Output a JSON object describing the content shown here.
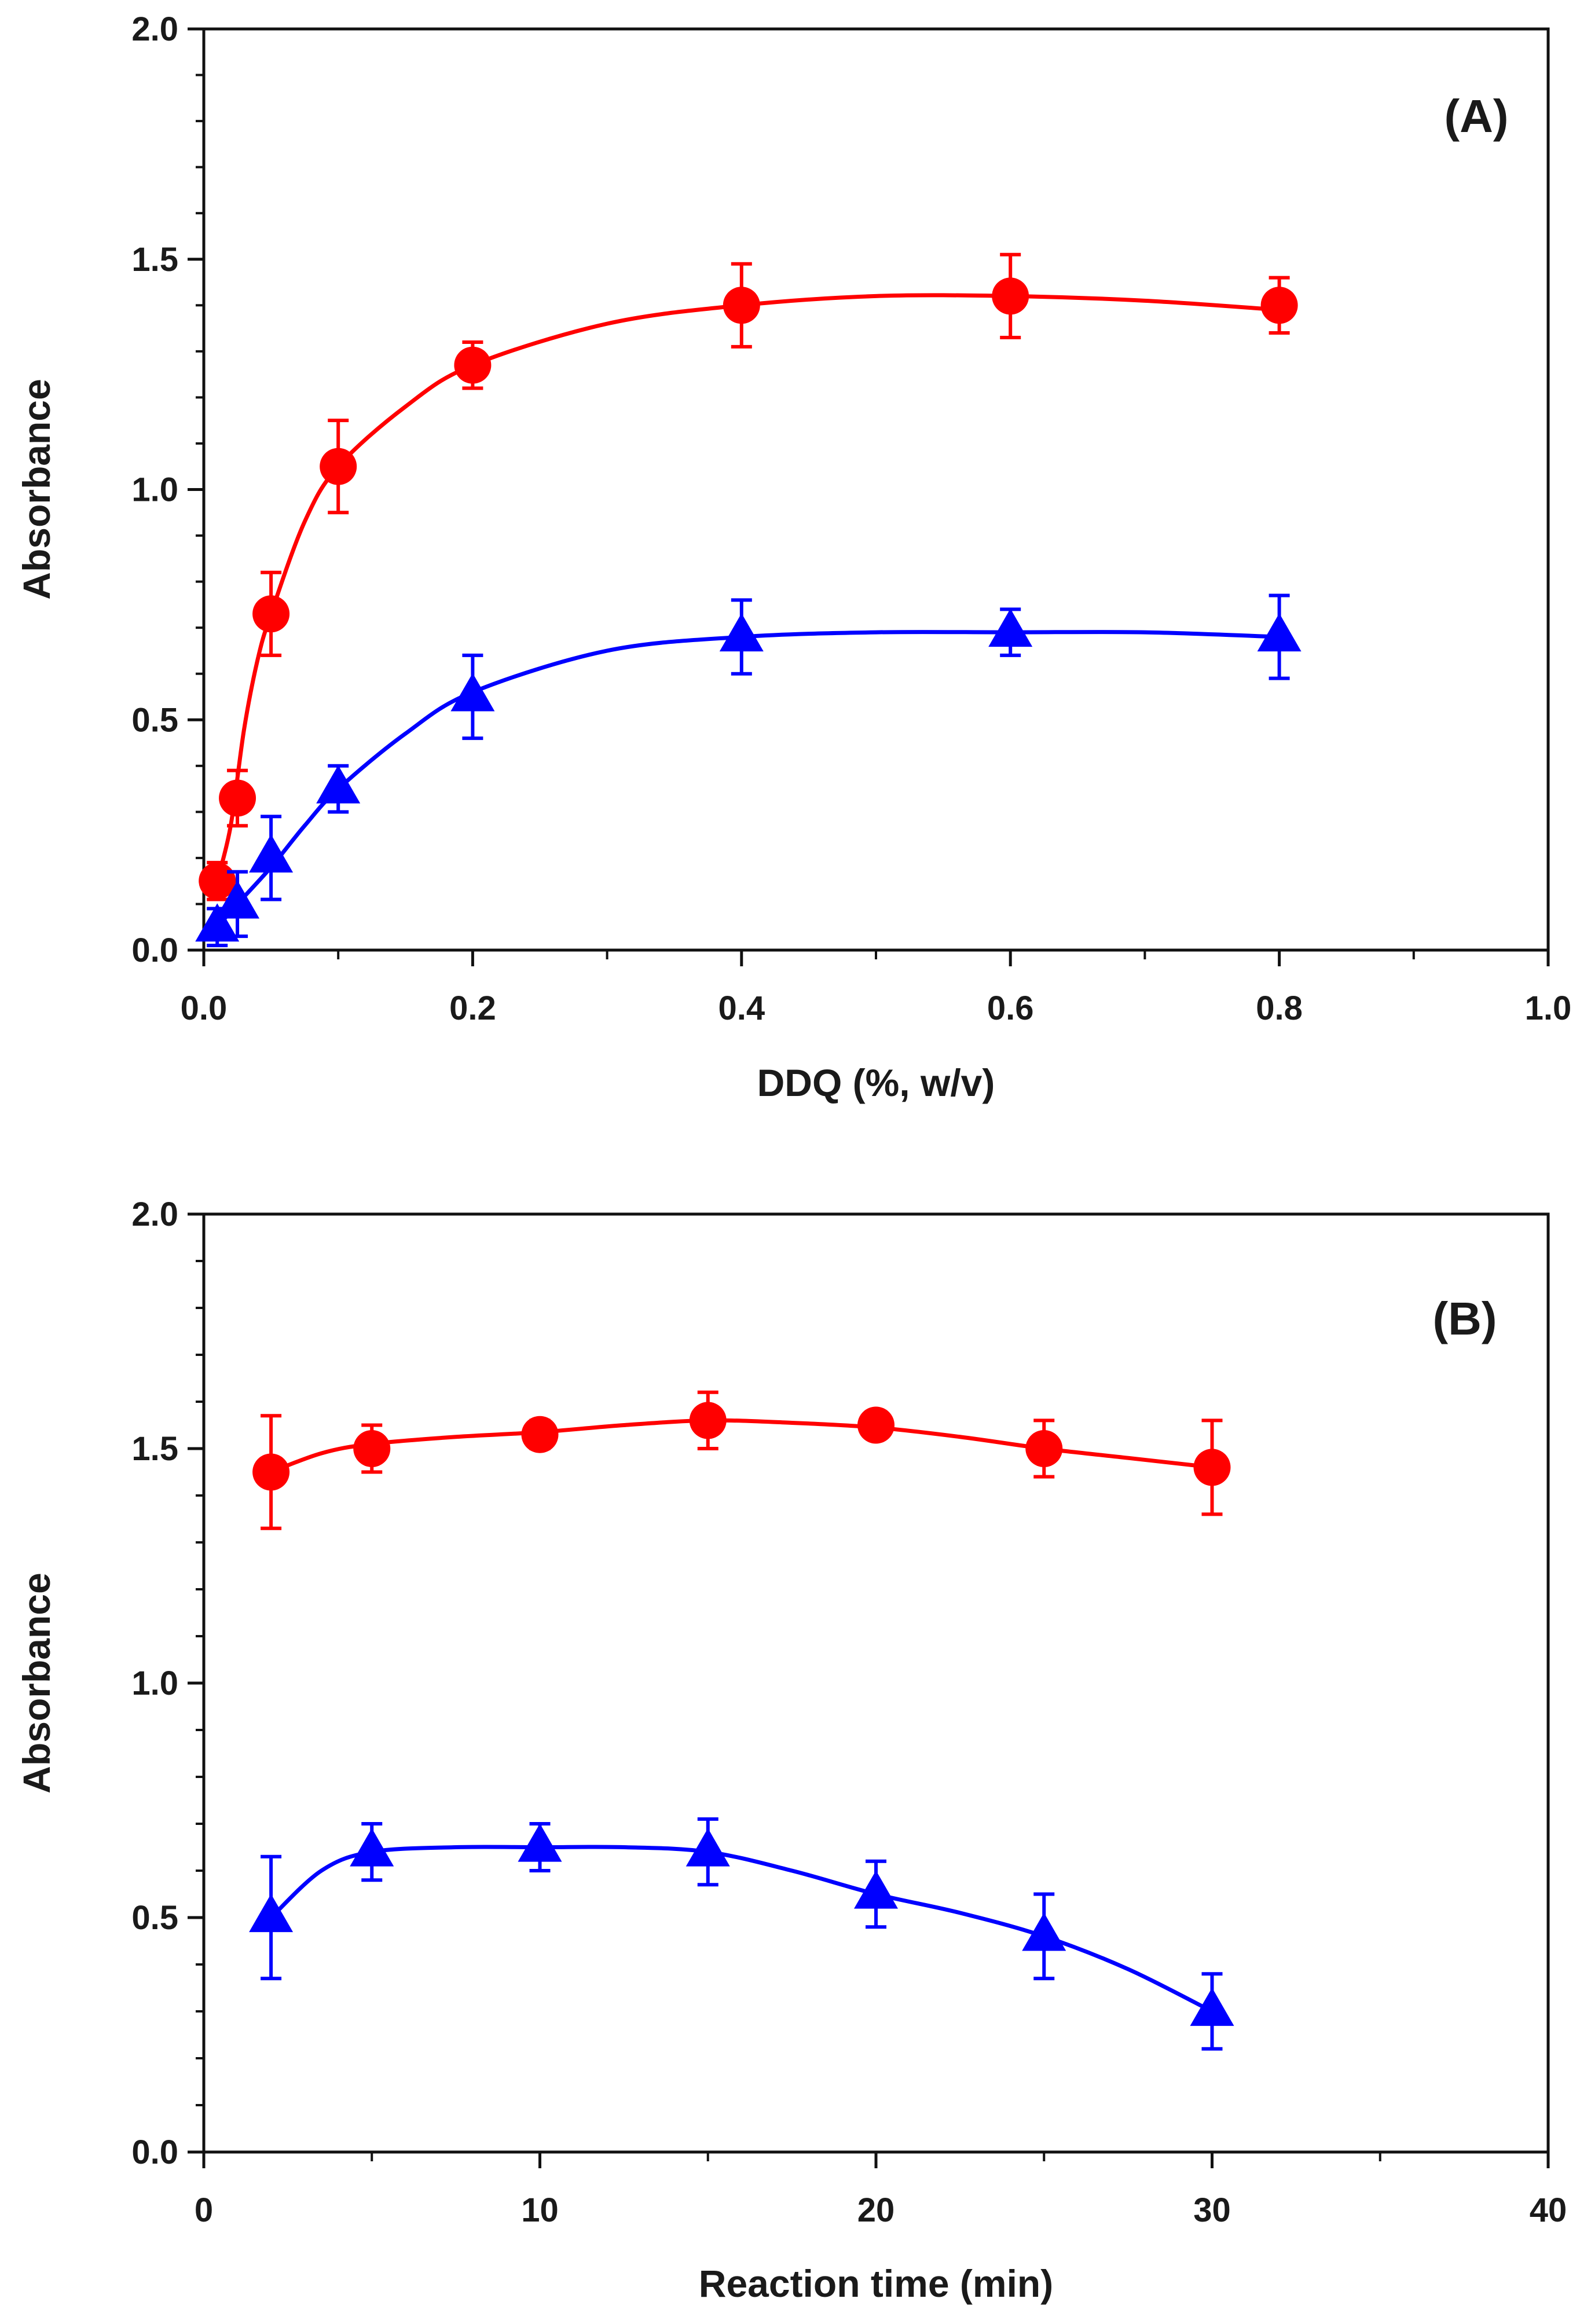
{
  "chart_data": [
    {
      "type": "scatter",
      "panel_label": "(A)",
      "xlabel": "DDQ  (%, w/v)",
      "ylabel": "Absorbance",
      "xlim": [
        0,
        1.0
      ],
      "ylim": [
        0,
        2.0
      ],
      "x_ticks": [
        "0.0",
        "0.2",
        "0.4",
        "0.6",
        "0.8",
        "1.0"
      ],
      "y_ticks": [
        "0.0",
        "0.5",
        "1.0",
        "1.5",
        "2.0"
      ],
      "grid": false,
      "series": [
        {
          "name": "circle series",
          "marker": "circle",
          "color": "#ff0000",
          "points": [
            {
              "x": 0.01,
              "y": 0.15,
              "err": 0.04
            },
            {
              "x": 0.025,
              "y": 0.33,
              "err": 0.06
            },
            {
              "x": 0.05,
              "y": 0.73,
              "err": 0.09
            },
            {
              "x": 0.1,
              "y": 1.05,
              "err": 0.1
            },
            {
              "x": 0.2,
              "y": 1.27,
              "err": 0.05
            },
            {
              "x": 0.4,
              "y": 1.4,
              "err": 0.09
            },
            {
              "x": 0.6,
              "y": 1.42,
              "err": 0.09
            },
            {
              "x": 0.8,
              "y": 1.4,
              "err": 0.06
            }
          ],
          "curve": [
            [
              0.01,
              0.15
            ],
            [
              0.02,
              0.27
            ],
            [
              0.03,
              0.48
            ],
            [
              0.04,
              0.63
            ],
            [
              0.05,
              0.73
            ],
            [
              0.075,
              0.93
            ],
            [
              0.1,
              1.05
            ],
            [
              0.15,
              1.18
            ],
            [
              0.2,
              1.27
            ],
            [
              0.3,
              1.36
            ],
            [
              0.4,
              1.4
            ],
            [
              0.5,
              1.42
            ],
            [
              0.6,
              1.42
            ],
            [
              0.7,
              1.41
            ],
            [
              0.8,
              1.39
            ]
          ]
        },
        {
          "name": "triangle series",
          "marker": "triangle",
          "color": "#0000ff",
          "points": [
            {
              "x": 0.01,
              "y": 0.05,
              "err": 0.04
            },
            {
              "x": 0.025,
              "y": 0.1,
              "err": 0.07
            },
            {
              "x": 0.05,
              "y": 0.2,
              "err": 0.09
            },
            {
              "x": 0.1,
              "y": 0.35,
              "err": 0.05
            },
            {
              "x": 0.2,
              "y": 0.55,
              "err": 0.09
            },
            {
              "x": 0.4,
              "y": 0.68,
              "err": 0.08
            },
            {
              "x": 0.6,
              "y": 0.69,
              "err": 0.05
            },
            {
              "x": 0.8,
              "y": 0.68,
              "err": 0.09
            }
          ],
          "curve": [
            [
              0.01,
              0.05
            ],
            [
              0.025,
              0.1
            ],
            [
              0.05,
              0.18
            ],
            [
              0.075,
              0.27
            ],
            [
              0.1,
              0.35
            ],
            [
              0.15,
              0.47
            ],
            [
              0.2,
              0.56
            ],
            [
              0.3,
              0.65
            ],
            [
              0.4,
              0.68
            ],
            [
              0.5,
              0.69
            ],
            [
              0.6,
              0.69
            ],
            [
              0.7,
              0.69
            ],
            [
              0.8,
              0.68
            ]
          ]
        }
      ]
    },
    {
      "type": "scatter",
      "panel_label": "(B)",
      "xlabel": "Reaction time (min)",
      "ylabel": "Absorbance",
      "xlim": [
        0,
        40
      ],
      "ylim": [
        0,
        2.0
      ],
      "x_ticks": [
        "0",
        "10",
        "20",
        "30",
        "40"
      ],
      "y_ticks": [
        "0.0",
        "0.5",
        "1.0",
        "1.5",
        "2.0"
      ],
      "grid": false,
      "series": [
        {
          "name": "circle series",
          "marker": "circle",
          "color": "#ff0000",
          "points": [
            {
              "x": 2,
              "y": 1.45,
              "err": 0.12
            },
            {
              "x": 5,
              "y": 1.5,
              "err": 0.05
            },
            {
              "x": 10,
              "y": 1.53,
              "err": 0.03
            },
            {
              "x": 15,
              "y": 1.56,
              "err": 0.06
            },
            {
              "x": 20,
              "y": 1.55,
              "err": 0.02
            },
            {
              "x": 25,
              "y": 1.5,
              "err": 0.06
            },
            {
              "x": 30,
              "y": 1.46,
              "err": 0.1
            }
          ],
          "curve": [
            [
              2,
              1.45
            ],
            [
              3.5,
              1.49
            ],
            [
              5,
              1.51
            ],
            [
              7.5,
              1.525
            ],
            [
              10,
              1.535
            ],
            [
              12.5,
              1.55
            ],
            [
              15,
              1.56
            ],
            [
              17.5,
              1.555
            ],
            [
              20,
              1.545
            ],
            [
              22.5,
              1.525
            ],
            [
              25,
              1.5
            ],
            [
              27.5,
              1.48
            ],
            [
              30,
              1.46
            ]
          ]
        },
        {
          "name": "triangle series",
          "marker": "triangle",
          "color": "#0000ff",
          "points": [
            {
              "x": 2,
              "y": 0.5,
              "err": 0.13
            },
            {
              "x": 5,
              "y": 0.64,
              "err": 0.06
            },
            {
              "x": 10,
              "y": 0.65,
              "err": 0.05
            },
            {
              "x": 15,
              "y": 0.64,
              "err": 0.07
            },
            {
              "x": 20,
              "y": 0.55,
              "err": 0.07
            },
            {
              "x": 25,
              "y": 0.46,
              "err": 0.09
            },
            {
              "x": 30,
              "y": 0.3,
              "err": 0.08
            }
          ],
          "curve": [
            [
              2,
              0.5
            ],
            [
              3.5,
              0.6
            ],
            [
              5,
              0.64
            ],
            [
              7.5,
              0.65
            ],
            [
              10,
              0.65
            ],
            [
              12.5,
              0.65
            ],
            [
              15,
              0.64
            ],
            [
              17.5,
              0.6
            ],
            [
              20,
              0.55
            ],
            [
              22.5,
              0.51
            ],
            [
              25,
              0.46
            ],
            [
              27.5,
              0.39
            ],
            [
              30,
              0.3
            ]
          ]
        }
      ]
    }
  ]
}
